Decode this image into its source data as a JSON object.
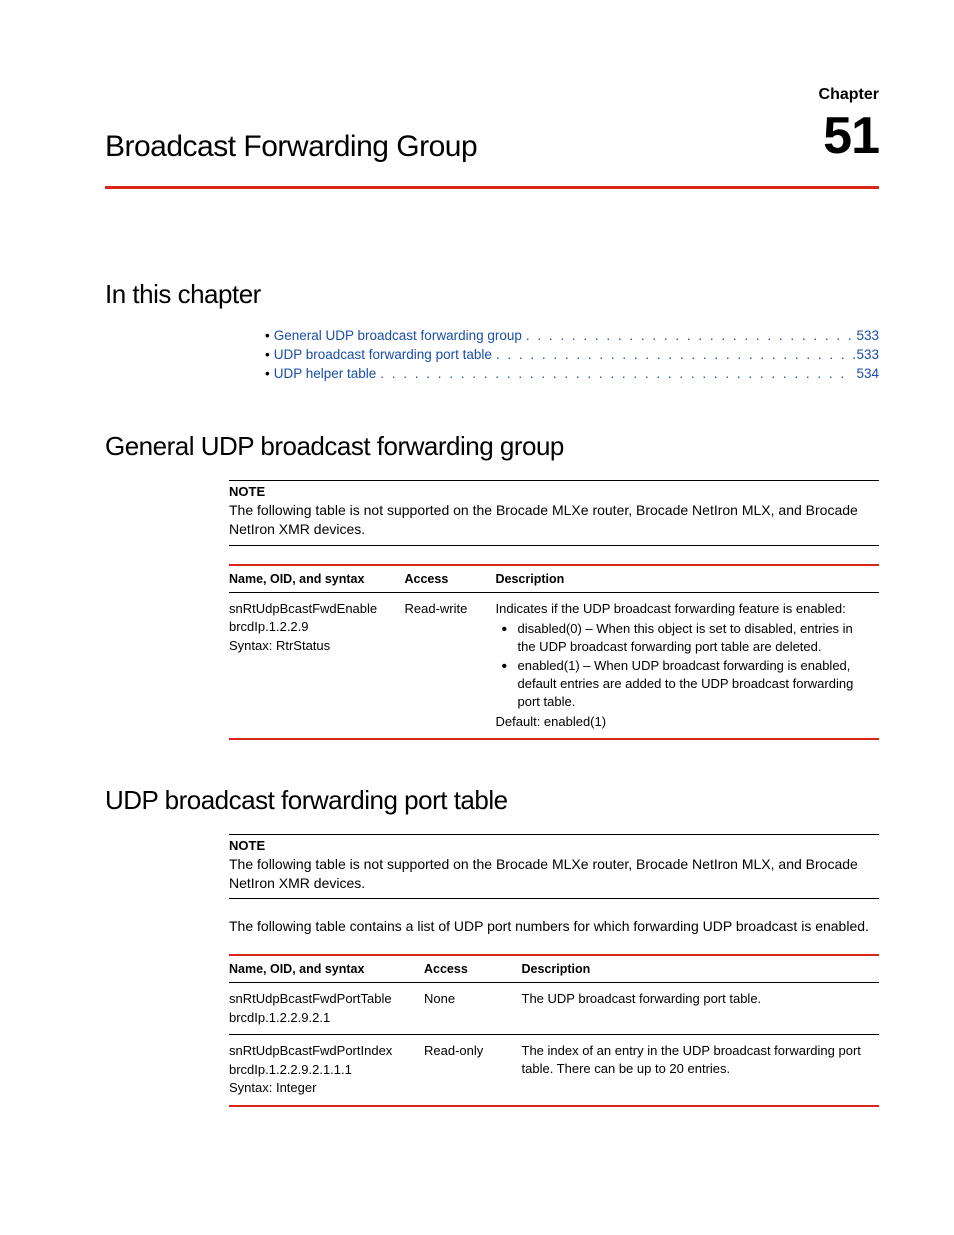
{
  "chapter": {
    "label": "Chapter",
    "number": "51",
    "title": "Broadcast Forwarding Group"
  },
  "sections": {
    "in_this_chapter": "In this chapter",
    "general_udp": "General UDP broadcast forwarding group",
    "udp_port_table": "UDP broadcast forwarding port table"
  },
  "toc": [
    {
      "label": "General UDP broadcast forwarding group",
      "page": "533"
    },
    {
      "label": "UDP broadcast forwarding port table",
      "page": "533"
    },
    {
      "label": "UDP helper table",
      "page": "534"
    }
  ],
  "note": {
    "label": "NOTE",
    "text": "The following table is not supported on the Brocade MLXe router, Brocade NetIron MLX, and Brocade NetIron XMR devices."
  },
  "table_headers": {
    "name": "Name, OID, and syntax",
    "access": "Access",
    "description": "Description"
  },
  "table1": {
    "row1": {
      "name1": "snRtUdpBcastFwdEnable",
      "name2": "brcdIp.1.2.2.9",
      "name3": "Syntax: RtrStatus",
      "access": "Read-write",
      "desc_intro": "Indicates if the UDP broadcast forwarding feature is enabled:",
      "desc_b1": "disabled(0) – When this object is set to disabled, entries in the UDP broadcast forwarding port table are deleted.",
      "desc_b2": "enabled(1) – When UDP broadcast forwarding is enabled, default entries are added to the UDP broadcast forwarding port table.",
      "desc_default": "Default: enabled(1)"
    }
  },
  "body_text_2": "The following table contains a list of UDP port numbers for which forwarding UDP broadcast is enabled.",
  "table2": {
    "row1": {
      "name1": "snRtUdpBcastFwdPortTable",
      "name2": "brcdIp.1.2.2.9.2.1",
      "access": "None",
      "desc": "The UDP broadcast forwarding port table."
    },
    "row2": {
      "name1": "snRtUdpBcastFwdPortIndex",
      "name2": "brcdIp.1.2.2.9.2.1.1.1",
      "name3": "Syntax: Integer",
      "access": "Read-only",
      "desc": "The index of an entry in the UDP broadcast forwarding port table. There can be up to 20 entries."
    }
  },
  "colors": {
    "accent": "#d9251c",
    "link": "#1a4ea8"
  }
}
